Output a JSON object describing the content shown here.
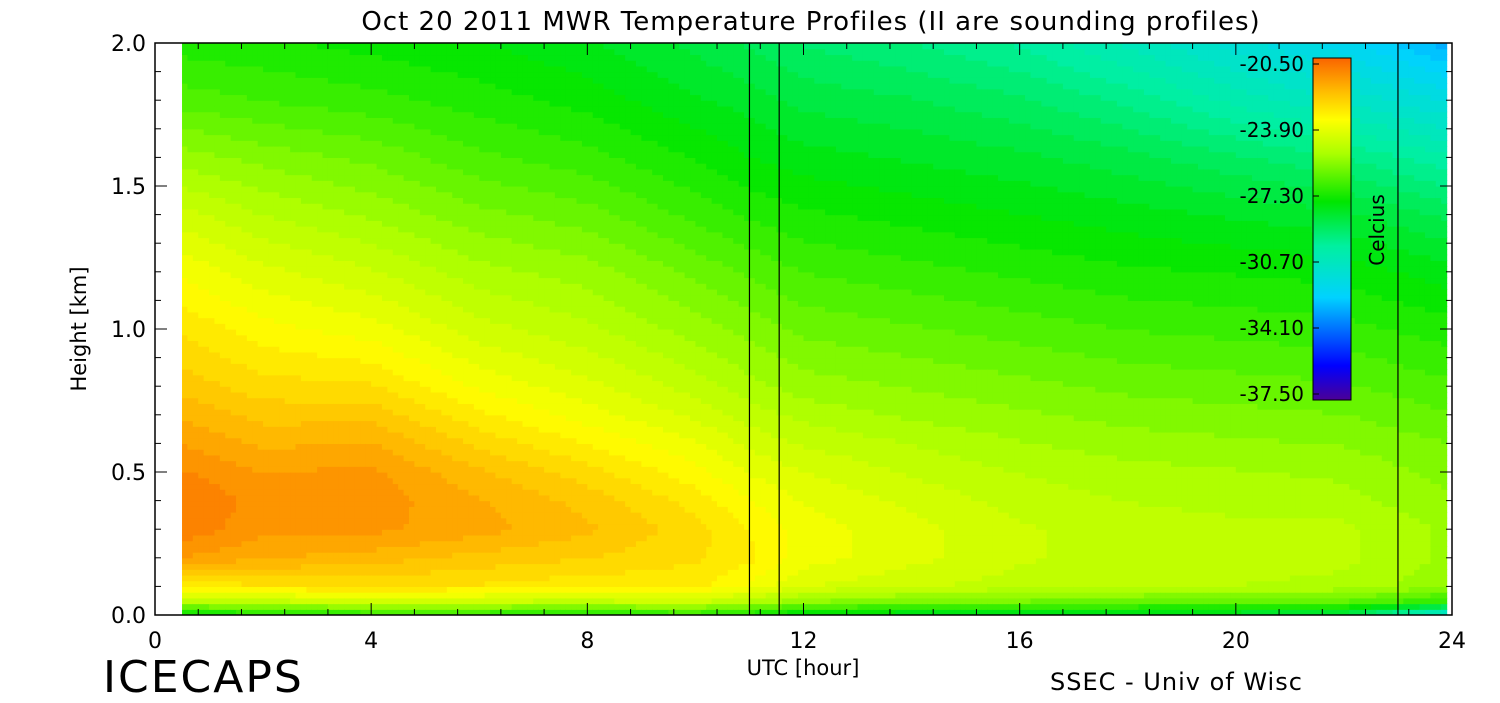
{
  "chart_data": {
    "type": "heatmap",
    "title": "Oct 20 2011 MWR Temperature Profiles (II are sounding profiles)",
    "xlabel": "UTC [hour]",
    "ylabel": "Height [km]",
    "xlim": [
      0,
      24
    ],
    "ylim": [
      0,
      2.0
    ],
    "x_ticks": [
      0,
      4,
      8,
      12,
      16,
      20,
      24
    ],
    "x_tick_labels": [
      "0",
      "4",
      "8",
      "12",
      "16",
      "20",
      "24"
    ],
    "y_ticks": [
      0.0,
      0.5,
      1.0,
      1.5,
      2.0
    ],
    "y_tick_labels": [
      "0.0",
      "0.5",
      "1.0",
      "1.5",
      "2.0"
    ],
    "data_x_range": [
      0.5,
      23.9
    ],
    "sounding_times": [
      11.0,
      11.55,
      23.0
    ],
    "colorbar": {
      "label": "Celcius",
      "ticks": [
        -20.5,
        -23.9,
        -27.3,
        -30.7,
        -34.1,
        -37.5
      ],
      "tick_labels": [
        "-20.50",
        "-23.90",
        "-27.30",
        "-30.70",
        "-34.10",
        "-37.50"
      ],
      "range": [
        -37.5,
        -20.5
      ]
    },
    "temperature_grid": {
      "units": "Celsius",
      "times": [
        0.5,
        2,
        4,
        6,
        8,
        10,
        11,
        12,
        14,
        16,
        18,
        20,
        22,
        23.9
      ],
      "heights": [
        0.0,
        0.05,
        0.1,
        0.2,
        0.3,
        0.4,
        0.5,
        0.6,
        0.7,
        0.8,
        1.0,
        1.2,
        1.4,
        1.6,
        1.8,
        2.0
      ],
      "values": [
        [
          -27.8,
          -27.5,
          -27.2,
          -27.2,
          -27.3,
          -27.2,
          -27.5,
          -28.0,
          -28.2,
          -28.3,
          -28.4,
          -28.5,
          -28.8,
          -31.5
        ],
        [
          -25.0,
          -24.7,
          -24.5,
          -24.6,
          -24.7,
          -24.5,
          -25.0,
          -25.6,
          -25.9,
          -26.0,
          -26.1,
          -26.2,
          -26.3,
          -27.0
        ],
        [
          -23.3,
          -23.0,
          -22.9,
          -23.0,
          -23.2,
          -23.2,
          -23.7,
          -24.3,
          -24.6,
          -24.8,
          -25.0,
          -25.0,
          -25.1,
          -25.6
        ],
        [
          -21.6,
          -21.9,
          -22.1,
          -22.4,
          -22.6,
          -22.9,
          -23.2,
          -23.8,
          -24.2,
          -24.6,
          -24.8,
          -24.8,
          -24.9,
          -25.4
        ],
        [
          -21.0,
          -21.5,
          -21.5,
          -21.8,
          -22.2,
          -22.8,
          -23.3,
          -23.8,
          -24.2,
          -24.6,
          -24.8,
          -24.9,
          -24.9,
          -25.4
        ],
        [
          -20.9,
          -21.4,
          -21.4,
          -21.9,
          -22.4,
          -23.1,
          -23.6,
          -24.0,
          -24.4,
          -24.8,
          -25.0,
          -25.1,
          -25.2,
          -25.6
        ],
        [
          -21.2,
          -21.6,
          -21.5,
          -22.2,
          -22.8,
          -23.5,
          -24.0,
          -24.3,
          -24.7,
          -25.0,
          -25.2,
          -25.3,
          -25.4,
          -25.8
        ],
        [
          -21.6,
          -22.0,
          -21.9,
          -22.7,
          -23.3,
          -23.9,
          -24.4,
          -24.7,
          -25.0,
          -25.3,
          -25.5,
          -25.6,
          -25.7,
          -26.0
        ],
        [
          -22.0,
          -22.4,
          -22.4,
          -23.2,
          -23.8,
          -24.4,
          -24.8,
          -25.1,
          -25.4,
          -25.6,
          -25.8,
          -25.9,
          -26.0,
          -26.3
        ],
        [
          -22.4,
          -22.8,
          -22.9,
          -23.7,
          -24.2,
          -24.8,
          -25.2,
          -25.5,
          -25.7,
          -25.9,
          -26.1,
          -26.2,
          -26.3,
          -26.6
        ],
        [
          -23.0,
          -23.5,
          -23.8,
          -24.5,
          -24.9,
          -25.5,
          -25.8,
          -26.1,
          -26.3,
          -26.5,
          -26.7,
          -26.8,
          -26.9,
          -27.2
        ],
        [
          -23.7,
          -24.2,
          -24.6,
          -25.2,
          -25.5,
          -26.1,
          -26.4,
          -26.7,
          -26.9,
          -27.1,
          -27.3,
          -27.4,
          -27.5,
          -27.9
        ],
        [
          -24.5,
          -25.0,
          -25.4,
          -25.9,
          -26.2,
          -26.8,
          -27.1,
          -27.3,
          -27.5,
          -27.7,
          -27.9,
          -28.1,
          -28.3,
          -28.8
        ],
        [
          -25.5,
          -25.8,
          -26.1,
          -26.6,
          -26.9,
          -27.4,
          -27.7,
          -27.9,
          -28.1,
          -28.3,
          -28.6,
          -29.0,
          -29.4,
          -30.0
        ],
        [
          -26.5,
          -26.7,
          -26.9,
          -27.2,
          -27.5,
          -28.0,
          -28.2,
          -28.5,
          -28.7,
          -29.0,
          -29.5,
          -30.2,
          -30.8,
          -31.5
        ],
        [
          -27.2,
          -27.3,
          -27.5,
          -27.7,
          -28.0,
          -28.5,
          -28.8,
          -29.1,
          -29.4,
          -29.8,
          -30.5,
          -31.3,
          -32.0,
          -33.0
        ]
      ]
    }
  },
  "footer": {
    "brand": "ICECAPS",
    "credit": "SSEC - Univ of Wisc"
  }
}
